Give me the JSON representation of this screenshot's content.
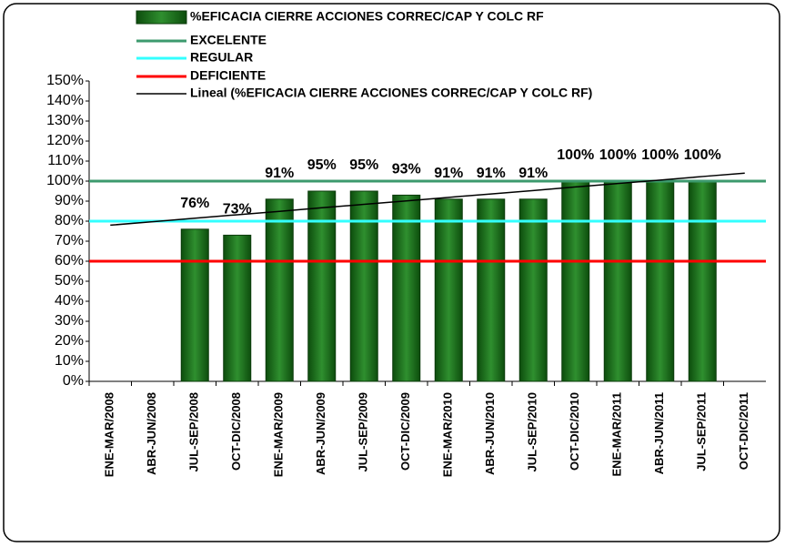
{
  "chart_data": {
    "type": "bar",
    "categories": [
      "ENE-MAR/2008",
      "ABR-JUN/2008",
      "JUL-SEP/2008",
      "OCT-DIC/2008",
      "ENE-MAR/2009",
      "ABR-JUN/2009",
      "JUL-SEP/2009",
      "OCT-DIC/2009",
      "ENE-MAR/2010",
      "ABR-JUN/2010",
      "JUL-SEP/2010",
      "OCT-DIC/2010",
      "ENE-MAR/2011",
      "ABR-JUN/2011",
      "JUL-SEP/2011",
      "OCT-DIC/2011"
    ],
    "series": [
      {
        "name": "%EFICACIA CIERRE ACCIONES CORREC/CAP Y COLC RF",
        "type": "bar",
        "color": "#1e6e1e",
        "values": [
          null,
          null,
          76,
          73,
          91,
          95,
          95,
          93,
          91,
          91,
          91,
          100,
          100,
          100,
          100,
          null
        ],
        "value_labels": [
          null,
          null,
          "76%",
          "73%",
          "91%",
          "95%",
          "95%",
          "93%",
          "91%",
          "91%",
          "91%",
          "100%",
          "100%",
          "100%",
          "100%",
          null
        ]
      },
      {
        "name": "EXCELENTE",
        "type": "line",
        "color": "#3c9a6e",
        "values": [
          100,
          100,
          100,
          100,
          100,
          100,
          100,
          100,
          100,
          100,
          100,
          100,
          100,
          100,
          100,
          100
        ]
      },
      {
        "name": "REGULAR",
        "type": "line",
        "color": "#33ffff",
        "values": [
          80,
          80,
          80,
          80,
          80,
          80,
          80,
          80,
          80,
          80,
          80,
          80,
          80,
          80,
          80,
          80
        ]
      },
      {
        "name": "DEFICIENTE",
        "type": "line",
        "color": "#ff0000",
        "values": [
          60,
          60,
          60,
          60,
          60,
          60,
          60,
          60,
          60,
          60,
          60,
          60,
          60,
          60,
          60,
          60
        ]
      },
      {
        "name": "Lineal (%EFICACIA CIERRE ACCIONES CORREC/CAP Y COLC RF)",
        "type": "trend",
        "color": "#000000",
        "values": [
          78,
          79.7,
          81.5,
          83.2,
          84.9,
          86.7,
          88.4,
          90.1,
          91.9,
          93.6,
          95.3,
          97.1,
          98.8,
          100.5,
          102.3,
          104
        ]
      }
    ],
    "ylim": [
      0,
      150
    ],
    "yticks": [
      {
        "value": 0,
        "label": "0%"
      },
      {
        "value": 10,
        "label": "10%"
      },
      {
        "value": 20,
        "label": "20%"
      },
      {
        "value": 30,
        "label": "30%"
      },
      {
        "value": 40,
        "label": "40%"
      },
      {
        "value": 50,
        "label": "50%"
      },
      {
        "value": 60,
        "label": "60%"
      },
      {
        "value": 70,
        "label": "70%"
      },
      {
        "value": 80,
        "label": "80%"
      },
      {
        "value": 90,
        "label": "90%"
      },
      {
        "value": 100,
        "label": "100%"
      },
      {
        "value": 110,
        "label": "110%"
      },
      {
        "value": 120,
        "label": "120%"
      },
      {
        "value": 130,
        "label": "130%"
      },
      {
        "value": 140,
        "label": "140%"
      },
      {
        "value": 150,
        "label": "150%"
      }
    ],
    "legend": "top"
  }
}
